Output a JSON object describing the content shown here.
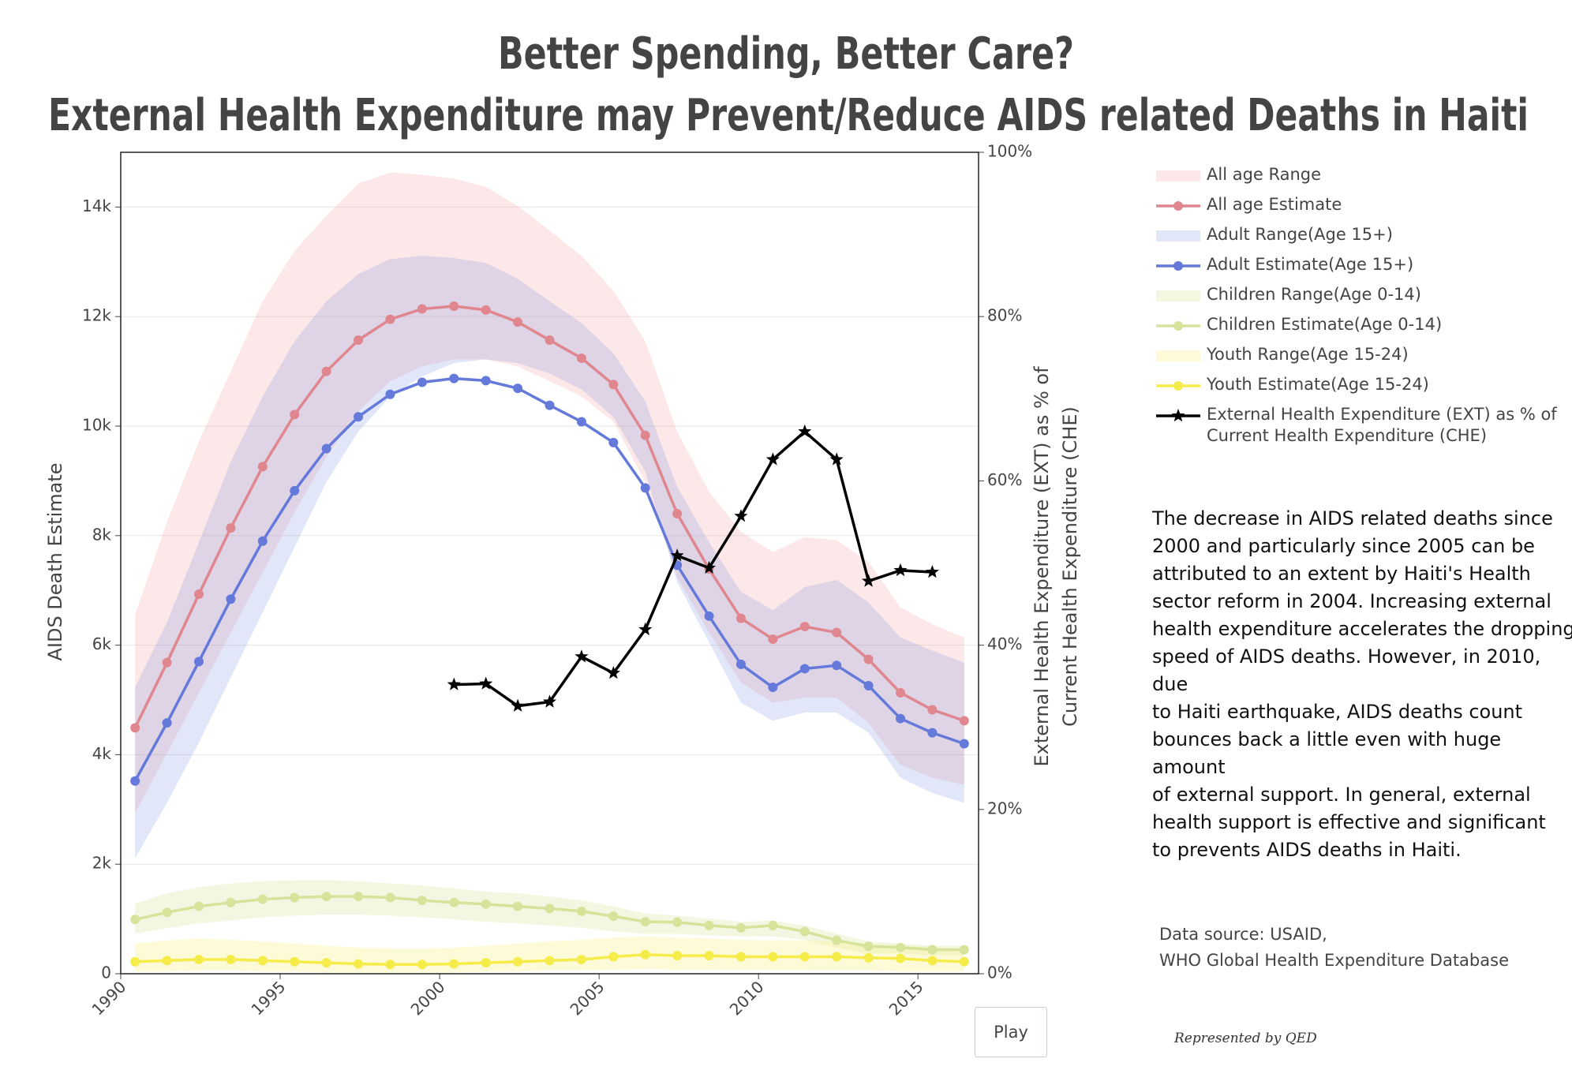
{
  "chart_data": {
    "type": "line",
    "title": "Better Spending, Better Care?",
    "subtitle": "External Health Expenditure may Prevent/Reduce AIDS related Deaths in Haiti",
    "y_label": "AIDS Death Estimate",
    "y2_label": "External Health Expenditure (EXT) as % of\nCurrent Health Expenditure (CHE)",
    "x": [
      1990.45,
      1991.45,
      1992.45,
      1993.45,
      1994.45,
      1995.45,
      1996.45,
      1997.45,
      1998.45,
      1999.45,
      2000.45,
      2001.45,
      2002.45,
      2003.45,
      2004.45,
      2005.45,
      2006.45,
      2007.45,
      2008.45,
      2009.45,
      2010.45,
      2011.45,
      2012.45,
      2013.45,
      2014.45,
      2015.45,
      2016.45
    ],
    "xlim": [
      1990,
      2016.9
    ],
    "xticks": [
      1990,
      1995,
      2000,
      2005,
      2010,
      2015
    ],
    "ylim": [
      0,
      15000
    ],
    "yticks": [
      0,
      {
        "value": 2000,
        "label": "2k"
      },
      {
        "value": 4000,
        "label": "4k"
      },
      {
        "value": 6000,
        "label": "6k"
      },
      {
        "value": 8000,
        "label": "8k"
      },
      {
        "value": 10000,
        "label": "10k"
      },
      {
        "value": 12000,
        "label": "12k"
      },
      {
        "value": 14000,
        "label": "14k"
      }
    ],
    "y2lim": [
      0,
      100
    ],
    "y2ticks": [
      {
        "value": 0,
        "label": "0%"
      },
      {
        "value": 20,
        "label": "20%"
      },
      {
        "value": 40,
        "label": "40%"
      },
      {
        "value": 60,
        "label": "60%"
      },
      {
        "value": 80,
        "label": "80%"
      },
      {
        "value": 100,
        "label": "100%"
      }
    ],
    "grid": true,
    "legend": "right",
    "series": [
      {
        "name": "All age Range",
        "kind": "band",
        "color": "rgba(242,150,150,0.22)",
        "upper": [
          6560,
          8250,
          9720,
          11000,
          12280,
          13200,
          13840,
          14430,
          14630,
          14590,
          14520,
          14370,
          14020,
          13570,
          13110,
          12470,
          11550,
          9900,
          8800,
          8070,
          7700,
          7970,
          7920,
          7520,
          6690,
          6380,
          6140
        ],
        "lower": [
          2930,
          4030,
          5130,
          6230,
          7330,
          8430,
          9440,
          10270,
          10820,
          11090,
          11220,
          11220,
          11090,
          10820,
          10540,
          10080,
          8980,
          7240,
          6230,
          5320,
          4950,
          5040,
          5040,
          4580,
          3810,
          3580,
          3450
        ]
      },
      {
        "name": "All age Estimate",
        "kind": "line",
        "color": "#e0868f",
        "values": [
          4490,
          5680,
          6930,
          8140,
          9260,
          10210,
          11000,
          11570,
          11950,
          12140,
          12190,
          12120,
          11900,
          11570,
          11240,
          10760,
          9830,
          8400,
          7390,
          6490,
          6110,
          6340,
          6230,
          5740,
          5130,
          4820,
          4620
        ]
      },
      {
        "name": "Adult Range(Age 15+)",
        "kind": "band",
        "color": "rgba(120,140,225,0.22)",
        "upper": [
          5230,
          6420,
          7880,
          9350,
          10540,
          11550,
          12280,
          12780,
          13050,
          13110,
          13070,
          12980,
          12690,
          12280,
          11880,
          11330,
          10450,
          8890,
          7880,
          6970,
          6640,
          7060,
          7190,
          6780,
          6140,
          5900,
          5680
        ],
        "lower": [
          2110,
          3120,
          4220,
          5410,
          6600,
          7790,
          8980,
          9900,
          10540,
          10910,
          11150,
          11220,
          11150,
          10960,
          10670,
          10170,
          9170,
          7150,
          6050,
          4950,
          4620,
          4770,
          4770,
          4400,
          3580,
          3300,
          3120
        ]
      },
      {
        "name": "Adult Estimate(Age 15+)",
        "kind": "line",
        "color": "#6479d9",
        "values": [
          3520,
          4580,
          5700,
          6840,
          7900,
          8820,
          9590,
          10170,
          10580,
          10800,
          10870,
          10830,
          10690,
          10380,
          10080,
          9700,
          8870,
          7460,
          6530,
          5650,
          5230,
          5570,
          5630,
          5260,
          4660,
          4400,
          4200
        ]
      },
      {
        "name": "Children Range(Age 0-14)",
        "kind": "band",
        "color": "rgba(215,228,160,0.3)",
        "upper": [
          1280,
          1470,
          1580,
          1650,
          1690,
          1710,
          1710,
          1690,
          1650,
          1610,
          1560,
          1500,
          1470,
          1410,
          1340,
          1230,
          1100,
          1060,
          1010,
          950,
          970,
          880,
          730,
          590,
          550,
          510,
          510
        ],
        "lower": [
          730,
          830,
          920,
          970,
          1030,
          1060,
          1080,
          1080,
          1060,
          1030,
          990,
          950,
          920,
          880,
          840,
          770,
          730,
          730,
          700,
          680,
          680,
          620,
          480,
          370,
          370,
          330,
          330
        ]
      },
      {
        "name": "Children Estimate(Age 0-14)",
        "kind": "line",
        "color": "#d6e39a",
        "values": [
          990,
          1120,
          1230,
          1300,
          1360,
          1390,
          1410,
          1410,
          1390,
          1340,
          1300,
          1270,
          1230,
          1190,
          1140,
          1050,
          950,
          940,
          880,
          840,
          880,
          770,
          610,
          500,
          480,
          440,
          440
        ]
      },
      {
        "name": "Youth Range(Age 15-24)",
        "kind": "band",
        "color": "rgba(250,240,140,0.35)",
        "upper": [
          550,
          610,
          640,
          620,
          590,
          550,
          510,
          480,
          460,
          460,
          480,
          510,
          550,
          590,
          620,
          660,
          680,
          660,
          640,
          620,
          610,
          610,
          590,
          550,
          510,
          480,
          460
        ],
        "lower": [
          40,
          40,
          60,
          60,
          40,
          40,
          20,
          20,
          20,
          20,
          20,
          40,
          40,
          60,
          60,
          70,
          90,
          70,
          70,
          70,
          70,
          60,
          60,
          60,
          40,
          40,
          40
        ]
      },
      {
        "name": "Youth Estimate(Age 15-24)",
        "kind": "line",
        "color": "#f5ec4a",
        "values": [
          220,
          240,
          260,
          260,
          240,
          220,
          200,
          180,
          170,
          170,
          180,
          200,
          220,
          240,
          260,
          310,
          350,
          330,
          330,
          310,
          310,
          310,
          310,
          290,
          280,
          240,
          220
        ]
      },
      {
        "name": "External Health Expenditure (EXT) as % of\n Current Health Expenditure (CHE)",
        "kind": "star-line",
        "color": "#000000",
        "axis": "y2",
        "values": [
          null,
          null,
          null,
          null,
          null,
          null,
          null,
          null,
          null,
          null,
          35.2,
          35.3,
          32.6,
          33.1,
          38.6,
          36.6,
          41.9,
          50.9,
          49.4,
          55.7,
          62.6,
          66.0,
          62.6,
          47.8,
          49.1,
          48.9,
          null
        ]
      }
    ],
    "note": "The decrease in AIDS related deaths since\n2000 and particularly since 2005 can be\nattributed to an extent by Haiti's Health\nsector reform in 2004. Increasing external\nhealth expenditure accelerates the dropping\nspeed of AIDS deaths. However, in 2010, due\nto Haiti earthquake, AIDS deaths count\nbounces back a little even with huge amount\nof external support.  In general, external\nhealth support is effective and significant\nto prevents AIDS deaths in Haiti.",
    "source": "Data source: USAID,\nWHO Global Health Expenditure Database",
    "credit": "Represented by QED"
  },
  "controls": {
    "play": "Play"
  }
}
